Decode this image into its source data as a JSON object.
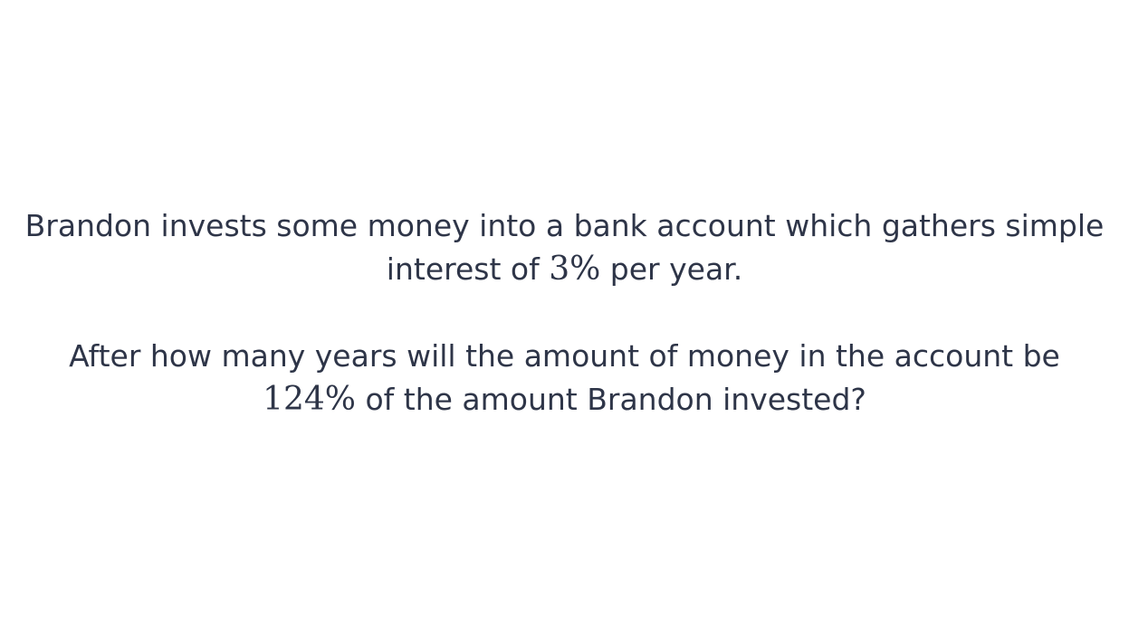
{
  "question": {
    "p1": {
      "text_before": "Brandon invests some money into a bank account which gathers simple interest of ",
      "math": "3%",
      "text_after": " per year."
    },
    "p2": {
      "text_before": "After how many years will the amount of money in the account be ",
      "math": "124%",
      "text_after": " of the amount Brandon invested?"
    }
  }
}
